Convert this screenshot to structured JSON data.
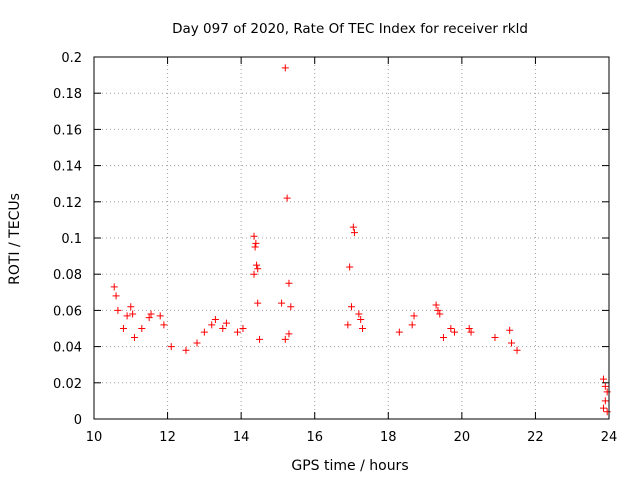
{
  "chart_data": {
    "type": "scatter",
    "title": "Day 097 of 2020, Rate Of TEC Index for receiver rkld",
    "xlabel": "GPS time / hours",
    "ylabel": "ROTI / TECUs",
    "xlim": [
      10,
      24
    ],
    "ylim": [
      0,
      0.2
    ],
    "xticks": [
      10,
      12,
      14,
      16,
      18,
      20,
      22,
      24
    ],
    "yticks": [
      0,
      0.02,
      0.04,
      0.06,
      0.08,
      0.1,
      0.12,
      0.14,
      0.16,
      0.18,
      0.2
    ],
    "grid": true,
    "marker": "+",
    "marker_color": "#ff0000",
    "series": [
      {
        "name": "",
        "points": [
          [
            10.55,
            0.073
          ],
          [
            10.6,
            0.068
          ],
          [
            10.65,
            0.06
          ],
          [
            10.8,
            0.05
          ],
          [
            10.9,
            0.057
          ],
          [
            11.0,
            0.062
          ],
          [
            11.05,
            0.058
          ],
          [
            11.1,
            0.045
          ],
          [
            11.3,
            0.05
          ],
          [
            11.5,
            0.056
          ],
          [
            11.55,
            0.058
          ],
          [
            11.8,
            0.057
          ],
          [
            11.9,
            0.052
          ],
          [
            12.1,
            0.04
          ],
          [
            12.5,
            0.038
          ],
          [
            12.8,
            0.042
          ],
          [
            13.0,
            0.048
          ],
          [
            13.2,
            0.052
          ],
          [
            13.3,
            0.055
          ],
          [
            13.5,
            0.05
          ],
          [
            13.6,
            0.053
          ],
          [
            13.9,
            0.048
          ],
          [
            14.05,
            0.05
          ],
          [
            14.35,
            0.101
          ],
          [
            14.4,
            0.097
          ],
          [
            14.38,
            0.095
          ],
          [
            14.42,
            0.085
          ],
          [
            14.45,
            0.083
          ],
          [
            14.35,
            0.08
          ],
          [
            14.45,
            0.064
          ],
          [
            14.5,
            0.044
          ],
          [
            15.2,
            0.194
          ],
          [
            15.25,
            0.122
          ],
          [
            15.3,
            0.075
          ],
          [
            15.1,
            0.064
          ],
          [
            15.35,
            0.062
          ],
          [
            15.3,
            0.047
          ],
          [
            15.2,
            0.044
          ],
          [
            16.95,
            0.084
          ],
          [
            17.05,
            0.106
          ],
          [
            17.08,
            0.103
          ],
          [
            17.0,
            0.062
          ],
          [
            17.2,
            0.058
          ],
          [
            17.25,
            0.055
          ],
          [
            17.3,
            0.05
          ],
          [
            16.9,
            0.052
          ],
          [
            18.3,
            0.048
          ],
          [
            18.7,
            0.057
          ],
          [
            18.65,
            0.052
          ],
          [
            19.3,
            0.063
          ],
          [
            19.35,
            0.06
          ],
          [
            19.4,
            0.058
          ],
          [
            19.5,
            0.045
          ],
          [
            19.7,
            0.05
          ],
          [
            19.8,
            0.048
          ],
          [
            20.2,
            0.05
          ],
          [
            20.25,
            0.048
          ],
          [
            20.9,
            0.045
          ],
          [
            21.3,
            0.049
          ],
          [
            21.35,
            0.042
          ],
          [
            21.5,
            0.038
          ],
          [
            23.85,
            0.022
          ],
          [
            23.9,
            0.018
          ],
          [
            23.95,
            0.015
          ],
          [
            23.9,
            0.01
          ],
          [
            23.85,
            0.006
          ],
          [
            23.95,
            0.004
          ]
        ]
      }
    ]
  }
}
